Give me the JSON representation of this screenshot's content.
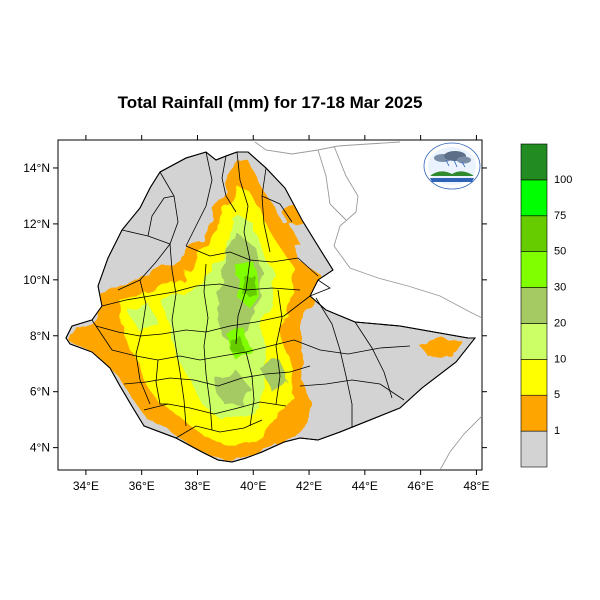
{
  "title": "Total Rainfall (mm) for 17-18 Mar 2025",
  "map": {
    "region": "Ethiopia",
    "variable": "Total Rainfall",
    "unit": "mm",
    "lon_range": [
      33,
      48.2
    ],
    "lat_range": [
      3.2,
      15
    ],
    "x_ticks": [
      {
        "value": 34,
        "label": "34°E"
      },
      {
        "value": 36,
        "label": "36°E"
      },
      {
        "value": 38,
        "label": "38°E"
      },
      {
        "value": 40,
        "label": "40°E"
      },
      {
        "value": 42,
        "label": "42°E"
      },
      {
        "value": 44,
        "label": "44°E"
      },
      {
        "value": 46,
        "label": "46°E"
      },
      {
        "value": 48,
        "label": "48°E"
      }
    ],
    "y_ticks": [
      {
        "value": 4,
        "label": "4°N"
      },
      {
        "value": 6,
        "label": "6°N"
      },
      {
        "value": 8,
        "label": "8°N"
      },
      {
        "value": 10,
        "label": "10°N"
      },
      {
        "value": 12,
        "label": "12°N"
      },
      {
        "value": 14,
        "label": "14°N"
      }
    ]
  },
  "colorbar": {
    "bins": [
      {
        "color": "#d3d3d3",
        "label": "1"
      },
      {
        "color": "#ffa500",
        "label": "5"
      },
      {
        "color": "#ffff00",
        "label": "10"
      },
      {
        "color": "#ccff66",
        "label": "20"
      },
      {
        "color": "#a5c963",
        "label": "30"
      },
      {
        "color": "#80ff00",
        "label": "50"
      },
      {
        "color": "#66cc00",
        "label": "75"
      },
      {
        "color": "#00ff00",
        "label": "100"
      },
      {
        "color": "#228b22",
        "label": ""
      }
    ]
  },
  "colors": {
    "no_rain": "#d3d3d3",
    "boundary": "#000000",
    "neighbor_border": "#999999"
  },
  "logo": {
    "name": "ethiopian-meteorology-institute-logo"
  }
}
